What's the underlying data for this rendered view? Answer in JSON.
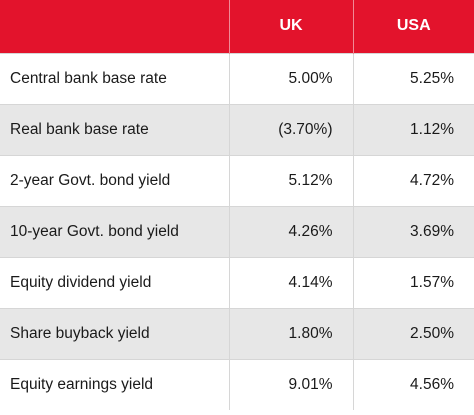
{
  "colors": {
    "header_background": "#e3132c",
    "header_text": "#ffffff",
    "striped_row_background": "#e7e7e7"
  },
  "table": {
    "columns": [
      "",
      "UK",
      "USA"
    ],
    "rows": [
      {
        "label": "Central bank base rate",
        "uk": "5.00%",
        "usa": "5.25%"
      },
      {
        "label": "Real bank base rate",
        "uk": "(3.70%)",
        "usa": "1.12%"
      },
      {
        "label": "2-year Govt. bond yield",
        "uk": "5.12%",
        "usa": "4.72%"
      },
      {
        "label": "10-year Govt. bond yield",
        "uk": "4.26%",
        "usa": "3.69%"
      },
      {
        "label": "Equity dividend yield",
        "uk": "4.14%",
        "usa": "1.57%"
      },
      {
        "label": "Share buyback yield",
        "uk": "1.80%",
        "usa": "2.50%"
      },
      {
        "label": "Equity earnings yield",
        "uk": "9.01%",
        "usa": "4.56%"
      }
    ]
  }
}
